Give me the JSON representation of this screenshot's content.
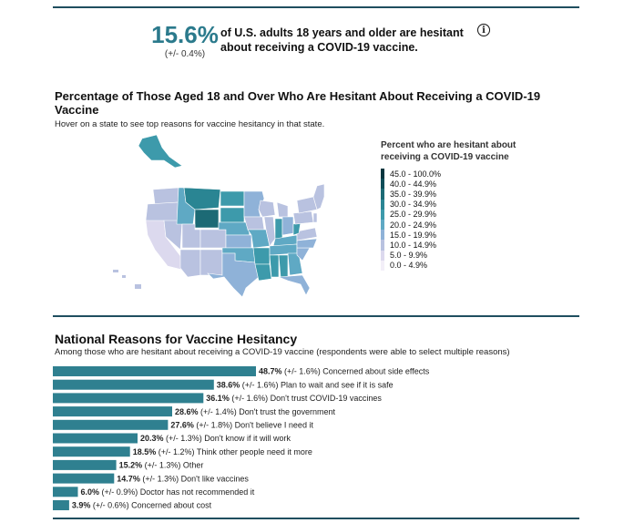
{
  "header": {
    "stat_value": "15.6%",
    "stat_ci": "(+/- 0.4%)",
    "stat_text": "of U.S. adults 18 years and older are hesitant about receiving a COVID-19 vaccine."
  },
  "map": {
    "title": "Percentage of Those Aged 18 and Over Who Are Hesitant About Receiving a COVID-19 Vaccine",
    "subtitle": "Hover on a state to see top reasons for vaccine hesitancy in that state.",
    "legend_title": "Percent who are hesitant about receiving a COVID-19 vaccine",
    "legend": [
      {
        "label": "45.0 - 100.0%",
        "color": "#08363f"
      },
      {
        "label": "40.0 - 44.9%",
        "color": "#0f4d58"
      },
      {
        "label": "35.0 - 39.9%",
        "color": "#1c6a75"
      },
      {
        "label": "30.0 - 34.9%",
        "color": "#2a8593"
      },
      {
        "label": "25.0 - 29.9%",
        "color": "#3d9aab"
      },
      {
        "label": "20.0 - 24.9%",
        "color": "#5fa9c4"
      },
      {
        "label": "15.0 - 19.9%",
        "color": "#8fb2d8"
      },
      {
        "label": "10.0 - 14.9%",
        "color": "#b9c2e0"
      },
      {
        "label": "5.0 - 9.9%",
        "color": "#dcd9ee"
      },
      {
        "label": "0.0 - 4.9%",
        "color": "#f3eff8"
      }
    ]
  },
  "reasons": {
    "title": "National Reasons for Vaccine Hesitancy",
    "subtitle": "Among those who are hesitant about receiving a COVID-19 vaccine (respondents were able to select multiple reasons)",
    "bar_color": "#2f8090"
  },
  "chart_data": {
    "type": "bar",
    "orientation": "horizontal",
    "title": "National Reasons for Vaccine Hesitancy",
    "categories": [
      "Concerned about side effects",
      "Plan to wait and see if it is safe",
      "Don't trust COVID-19 vaccines",
      "Don't trust the government",
      "Don't believe I need it",
      "Don't know if it will work",
      "Think other people need it more",
      "Other",
      "Don't like vaccines",
      "Doctor has not recommended it",
      "Concerned about cost"
    ],
    "values": [
      48.7,
      38.6,
      36.1,
      28.6,
      27.6,
      20.3,
      18.5,
      15.2,
      14.7,
      6.0,
      3.9
    ],
    "value_labels": [
      "48.7%",
      "38.6%",
      "36.1%",
      "28.6%",
      "27.6%",
      "20.3%",
      "18.5%",
      "15.2%",
      "14.7%",
      "6.0%",
      "3.9%"
    ],
    "ci_labels": [
      "(+/- 1.6%)",
      "(+/- 1.6%)",
      "(+/- 1.6%)",
      "(+/- 1.4%)",
      "(+/- 1.8%)",
      "(+/- 1.3%)",
      "(+/- 1.2%)",
      "(+/- 1.3%)",
      "(+/- 1.3%)",
      "(+/- 0.9%)",
      "(+/- 0.6%)"
    ],
    "xlim": [
      0,
      48.7
    ]
  }
}
